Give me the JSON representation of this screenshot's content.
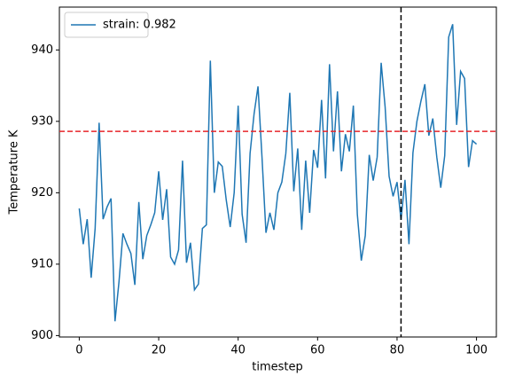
{
  "chart_data": {
    "type": "line",
    "xlabel": "timestep",
    "ylabel": "Temperature K",
    "x": [
      0,
      1,
      2,
      3,
      4,
      5,
      6,
      7,
      8,
      9,
      10,
      11,
      12,
      13,
      14,
      15,
      16,
      17,
      18,
      19,
      20,
      21,
      22,
      23,
      24,
      25,
      26,
      27,
      28,
      29,
      30,
      31,
      32,
      33,
      34,
      35,
      36,
      37,
      38,
      39,
      40,
      41,
      42,
      43,
      44,
      45,
      46,
      47,
      48,
      49,
      50,
      51,
      52,
      53,
      54,
      55,
      56,
      57,
      58,
      59,
      60,
      61,
      62,
      63,
      64,
      65,
      66,
      67,
      68,
      69,
      70,
      71,
      72,
      73,
      74,
      75,
      76,
      77,
      78,
      79,
      80,
      81,
      82,
      83,
      84,
      85,
      86,
      87,
      88,
      89,
      90,
      91,
      92,
      93,
      94,
      95,
      96,
      97,
      98,
      99,
      100
    ],
    "series": [
      {
        "name": "strain: 0.982",
        "color": "#1f77b4",
        "values": [
          917.8,
          912.8,
          916.3,
          908.1,
          915,
          929.8,
          916.3,
          918,
          919.2,
          902,
          907.5,
          914.3,
          912.8,
          911.5,
          907.1,
          918.7,
          910.7,
          914,
          915.5,
          917.2,
          923,
          916.2,
          920.5,
          911,
          910,
          912,
          924.5,
          910.2,
          913,
          906.4,
          907.2,
          915,
          915.5,
          938.5,
          920,
          924.3,
          923.7,
          919,
          915.2,
          920,
          932.2,
          917,
          913,
          925.5,
          931,
          934.9,
          925,
          914.4,
          917.2,
          914.8,
          920,
          921.5,
          925.5,
          934,
          920.2,
          926.2,
          914.8,
          924.5,
          917.2,
          926,
          923.5,
          933,
          922,
          938,
          925.8,
          934.2,
          923,
          928.2,
          925.8,
          932.2,
          917,
          910.5,
          914,
          925.3,
          921.7,
          925,
          938.2,
          932,
          922.3,
          919.5,
          921.5,
          916.2,
          921.8,
          912.8,
          925.6,
          930,
          932.8,
          935.2,
          928,
          930.4,
          925,
          920.7,
          925.2,
          941.8,
          943.6,
          929.5,
          937,
          936,
          923.6,
          927.3,
          926.8
        ]
      }
    ],
    "hline": {
      "value": 928.6,
      "color": "#e8262a"
    },
    "vline": {
      "value": 81,
      "color": "#000000"
    },
    "xlim": [
      -5,
      105
    ],
    "ylim": [
      899.8,
      946
    ],
    "xticks": [
      0,
      20,
      40,
      60,
      80,
      100
    ],
    "yticks": [
      900,
      910,
      920,
      930,
      940
    ],
    "legend": "upper left"
  }
}
